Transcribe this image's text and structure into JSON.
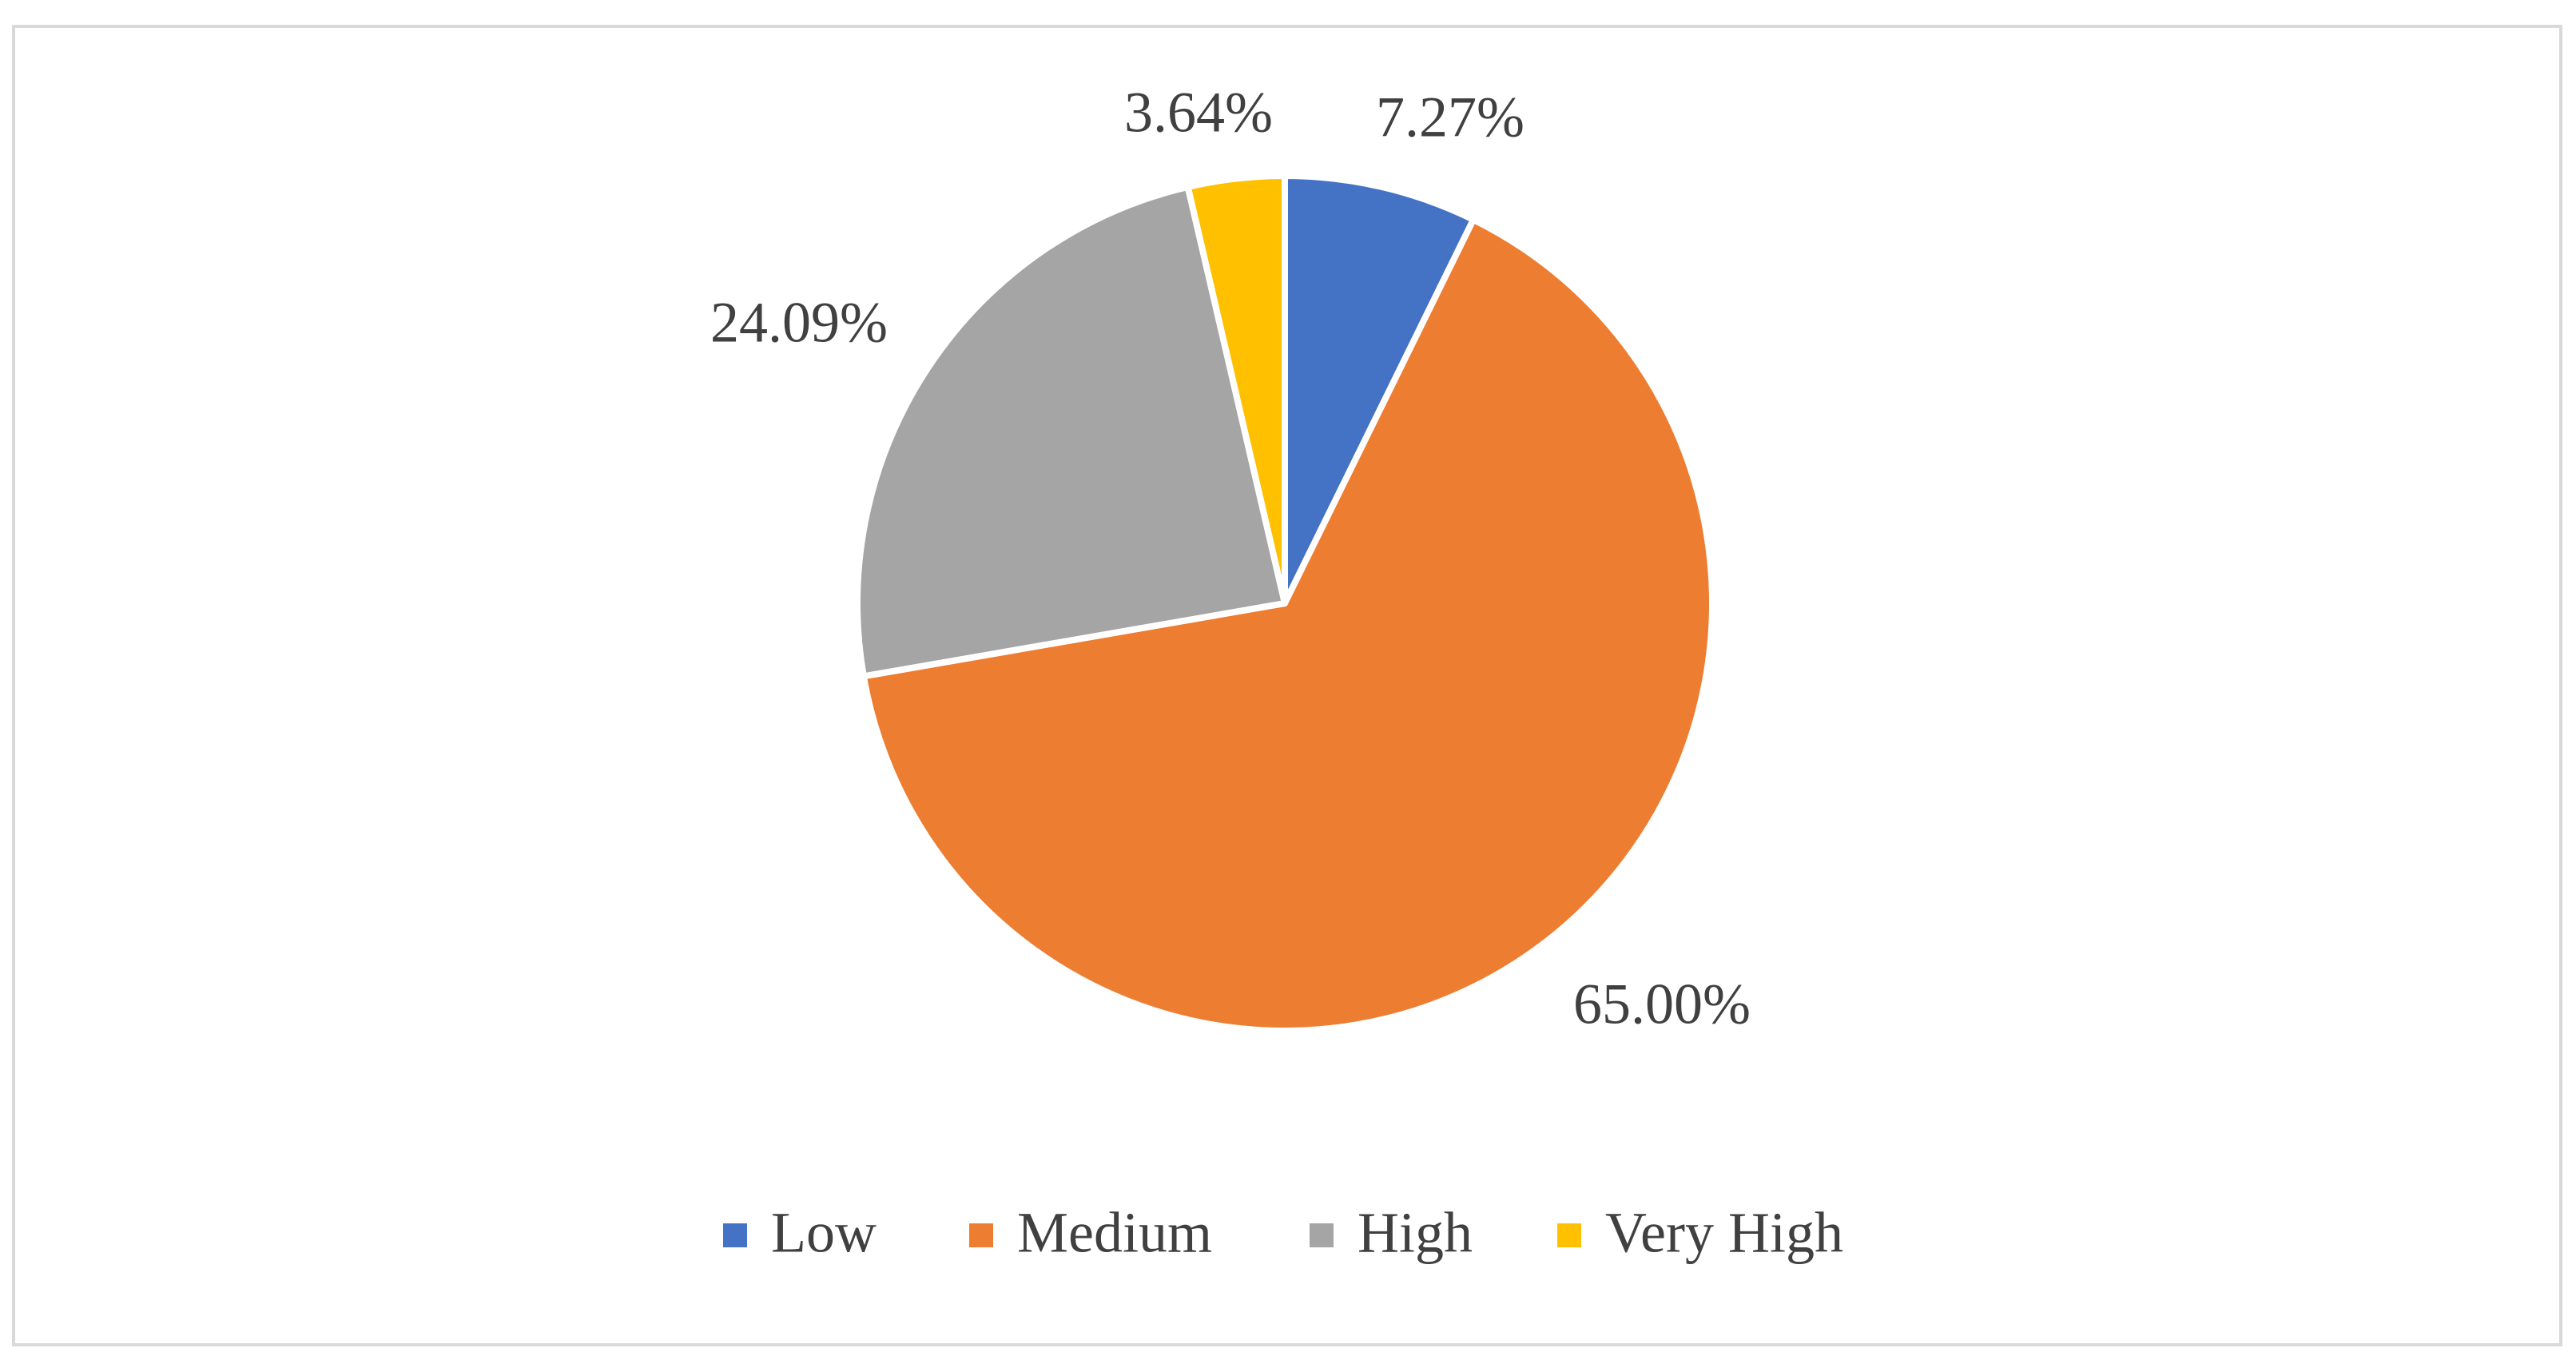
{
  "chart_data": {
    "type": "pie",
    "categories": [
      "Low",
      "Medium",
      "High",
      "Very High"
    ],
    "values": [
      7.27,
      65.0,
      24.09,
      3.64
    ],
    "value_labels": [
      "7.27%",
      "65.00%",
      "24.09%",
      "3.64%"
    ],
    "colors": [
      "#4472c4",
      "#ed7d31",
      "#a5a5a5",
      "#ffc000"
    ],
    "legend": "bottom"
  }
}
